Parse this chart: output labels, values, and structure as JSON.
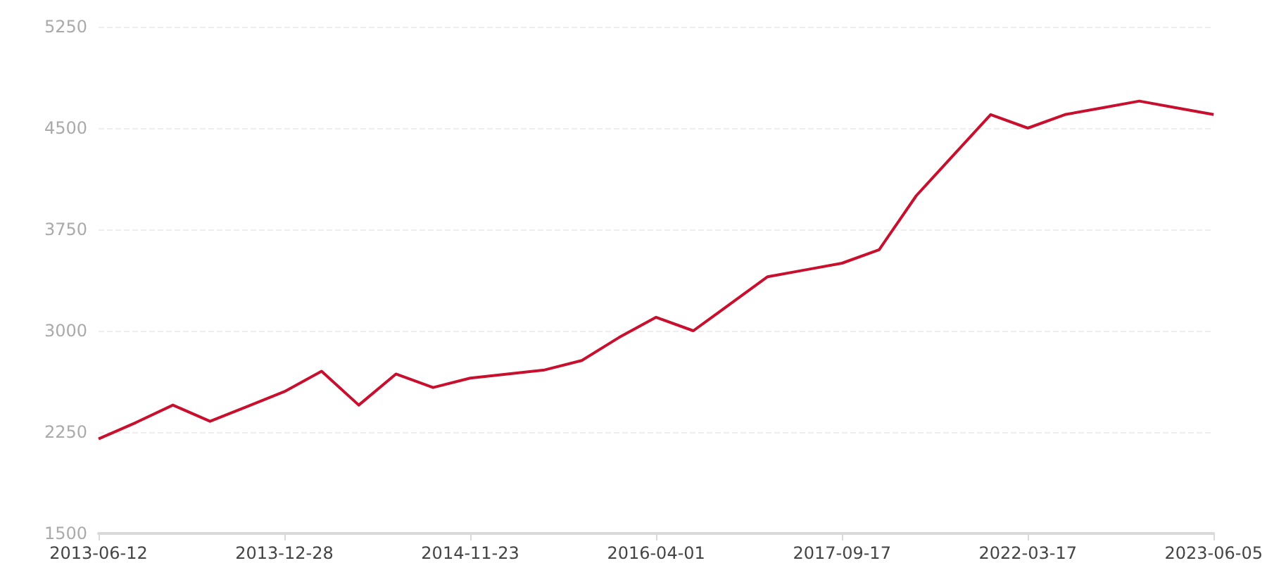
{
  "chart_data": {
    "type": "line",
    "categories": [
      "2013-06-12",
      null,
      null,
      null,
      null,
      "2013-12-28",
      null,
      null,
      null,
      null,
      "2014-11-23",
      null,
      null,
      null,
      null,
      "2016-04-01",
      null,
      null,
      null,
      null,
      "2017-09-17",
      null,
      null,
      null,
      null,
      "2022-03-17",
      null,
      null,
      null,
      null,
      "2023-06-05"
    ],
    "series": [
      {
        "color": "#c8102e",
        "values": [
          2200,
          2320,
          2450,
          2330,
          2440,
          2550,
          2700,
          2450,
          2680,
          2580,
          2650,
          2680,
          2710,
          2780,
          2950,
          3100,
          3000,
          3200,
          3400,
          3450,
          3500,
          3600,
          4000,
          4300,
          4600,
          4500,
          4600,
          4650,
          4700,
          4650,
          4600
        ]
      }
    ],
    "ylim": [
      1500,
      5250
    ],
    "yticks": [
      1500,
      2250,
      3000,
      3750,
      4500,
      5250
    ],
    "grid": "y",
    "marker": "none",
    "line_style": "solid"
  }
}
